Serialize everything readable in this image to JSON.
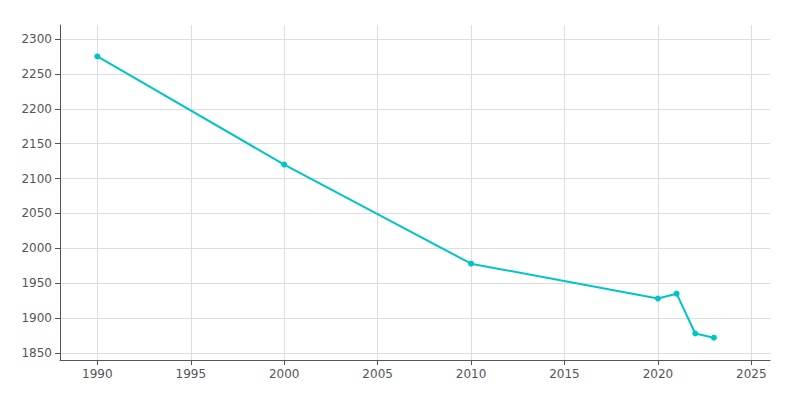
{
  "chart_data": {
    "type": "line",
    "x": [
      1990,
      2000,
      2010,
      2020,
      2021,
      2022,
      2023
    ],
    "values": [
      2275,
      2120,
      1978,
      1928,
      1935,
      1878,
      1872
    ],
    "color": "#00C5C5",
    "marker": "circle",
    "xlim": [
      1988,
      2026
    ],
    "ylim": [
      1840,
      2320
    ],
    "xticks": [
      1990,
      1995,
      2000,
      2005,
      2010,
      2015,
      2020,
      2025
    ],
    "yticks": [
      1850,
      1900,
      1950,
      2000,
      2050,
      2100,
      2150,
      2200,
      2250,
      2300
    ],
    "grid": true
  }
}
